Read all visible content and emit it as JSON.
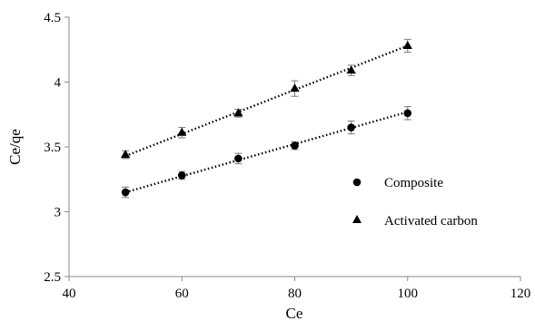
{
  "chart_data": {
    "type": "scatter",
    "xlabel": "Ce",
    "ylabel": "Ce/qe",
    "xlim": [
      40,
      120
    ],
    "ylim": [
      2.5,
      4.5
    ],
    "xticks": [
      40,
      60,
      80,
      100,
      120
    ],
    "yticks": [
      2.5,
      3,
      3.5,
      4,
      4.5
    ],
    "xtick_labels": [
      "40",
      "60",
      "80",
      "100",
      "120"
    ],
    "ytick_labels": [
      "2.5",
      "3",
      "3.5",
      "4",
      "4.5"
    ],
    "grid": false,
    "legend_position": "right",
    "series": [
      {
        "name": "Composite",
        "marker": "circle",
        "x": [
          50,
          60,
          70,
          80,
          90,
          100
        ],
        "y": [
          3.15,
          3.28,
          3.41,
          3.51,
          3.65,
          3.76
        ],
        "error": [
          0.04,
          0.03,
          0.04,
          0.03,
          0.05,
          0.05
        ],
        "trendline": {
          "style": "dotted",
          "x": [
            50,
            100
          ],
          "y": [
            3.15,
            3.77
          ]
        }
      },
      {
        "name": "Activated carbon",
        "marker": "triangle",
        "x": [
          50,
          60,
          70,
          80,
          90,
          100
        ],
        "y": [
          3.44,
          3.61,
          3.76,
          3.95,
          4.09,
          4.28
        ],
        "error": [
          0.03,
          0.04,
          0.03,
          0.06,
          0.04,
          0.05
        ],
        "trendline": {
          "style": "dotted",
          "x": [
            50,
            100
          ],
          "y": [
            3.43,
            4.28
          ]
        }
      }
    ]
  }
}
